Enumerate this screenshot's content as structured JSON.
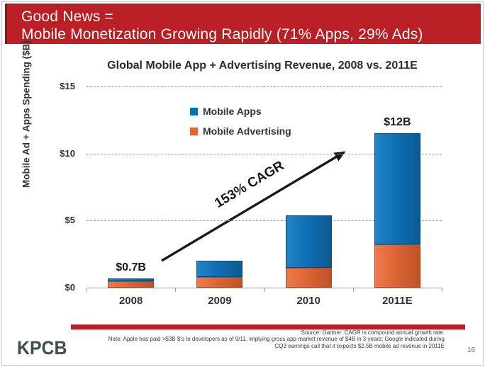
{
  "banner": {
    "line1": "Good News =",
    "line2": "Mobile Monetization Growing Rapidly (71% Apps, 29% Ads)"
  },
  "chart": {
    "title": "Global Mobile App + Advertising Revenue, 2008 vs. 2011E",
    "y_axis_title": "Mobile Ad + Apps Spending ($B)",
    "legend": [
      {
        "label": "Mobile Apps",
        "color": "#0f6fb4"
      },
      {
        "label": "Mobile Advertising",
        "color": "#de6535"
      }
    ],
    "cagr_label": "153% CAGR"
  },
  "chart_data": {
    "type": "bar",
    "stacked": true,
    "title": "Global Mobile App + Advertising Revenue, 2008 vs. 2011E",
    "categories": [
      "2008",
      "2009",
      "2010",
      "2011E"
    ],
    "series": [
      {
        "name": "Mobile Advertising",
        "color": "#de6535",
        "values": [
          0.45,
          0.8,
          1.5,
          3.2
        ]
      },
      {
        "name": "Mobile Apps",
        "color": "#0f6fb4",
        "values": [
          0.25,
          1.2,
          3.9,
          8.3
        ]
      }
    ],
    "bar_total_labels": [
      "$0.7B",
      "",
      "",
      "$12B"
    ],
    "ylabel": "Mobile Ad + Apps Spending ($B)",
    "ylim": [
      0,
      15
    ],
    "yticks": [
      0,
      5,
      10,
      15
    ],
    "ytick_labels": [
      "$0",
      "$5",
      "$10",
      "$15"
    ],
    "grid": "horizontal dashed gridlines at $5, $10, $15",
    "legend_position": "upper center-left inside plot",
    "annotation": {
      "arrow_label": "153% CAGR",
      "arrow_from": "2008",
      "arrow_to": "2011E"
    }
  },
  "footer": {
    "logo": "KPCB",
    "source_line1": "Source: Gartner. CAGR is compound annual growth rate.",
    "source_line2": "Note: Apple has paid >$3B $'s to developers as of 9/11, implying gross app market revenue of $4B in 3 years; Google indicated during",
    "source_line3": "CQ3 earnings call that it expects $2.5B mobile ad revenue in 2011E",
    "page_number": "16"
  },
  "colors": {
    "banner_red": "#b91f25",
    "apps_blue": "#0f6fb4",
    "ads_orange": "#de6535"
  }
}
